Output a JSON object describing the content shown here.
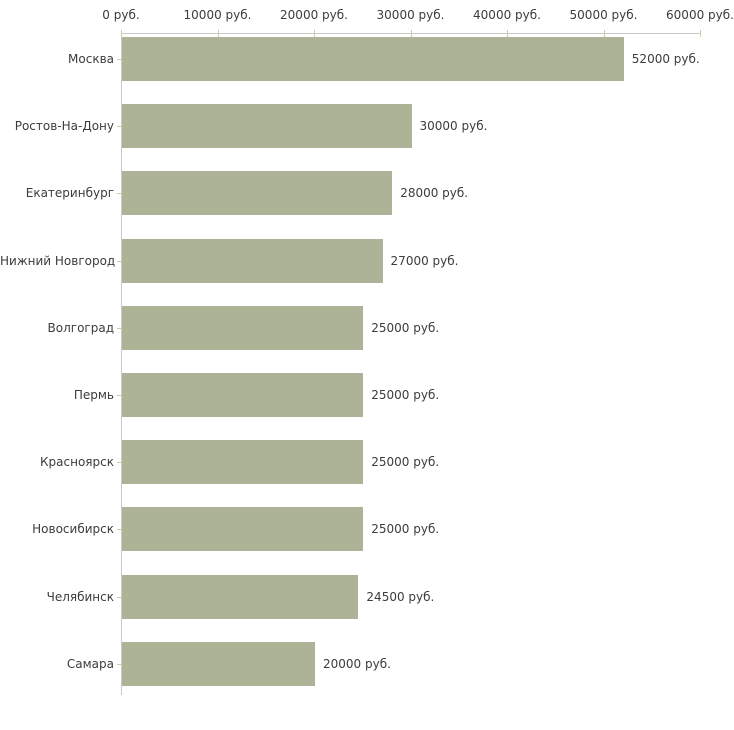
{
  "chart_data": {
    "type": "bar",
    "orientation": "horizontal",
    "title": "",
    "categories": [
      "Москва",
      "Ростов-На-Дону",
      "Екатеринбург",
      "Нижний Новгород",
      "Волгоград",
      "Пермь",
      "Красноярск",
      "Новосибирск",
      "Челябинск",
      "Самара"
    ],
    "values": [
      52000,
      30000,
      28000,
      27000,
      25000,
      25000,
      25000,
      25000,
      24500,
      20000
    ],
    "value_labels": [
      "52000 руб.",
      "30000 руб.",
      "28000 руб.",
      "27000 руб.",
      "25000 руб.",
      "25000 руб.",
      "25000 руб.",
      "25000 руб.",
      "24500 руб.",
      "20000 руб."
    ],
    "unit": "руб.",
    "x_axis": {
      "position": "top",
      "range": [
        0,
        60000
      ],
      "ticks": [
        0,
        10000,
        20000,
        30000,
        40000,
        50000,
        60000
      ],
      "tick_labels": [
        "0 руб.",
        "10000 руб.",
        "20000 руб.",
        "30000 руб.",
        "40000 руб.",
        "50000 руб.",
        "60000 руб."
      ]
    },
    "grid": false,
    "legend": false,
    "colors": {
      "bar": "#acb396",
      "axis_line": "#c9c9c9",
      "tick": "#cdcda3",
      "text": "#3c3c3c",
      "background": "#ffffff"
    }
  }
}
